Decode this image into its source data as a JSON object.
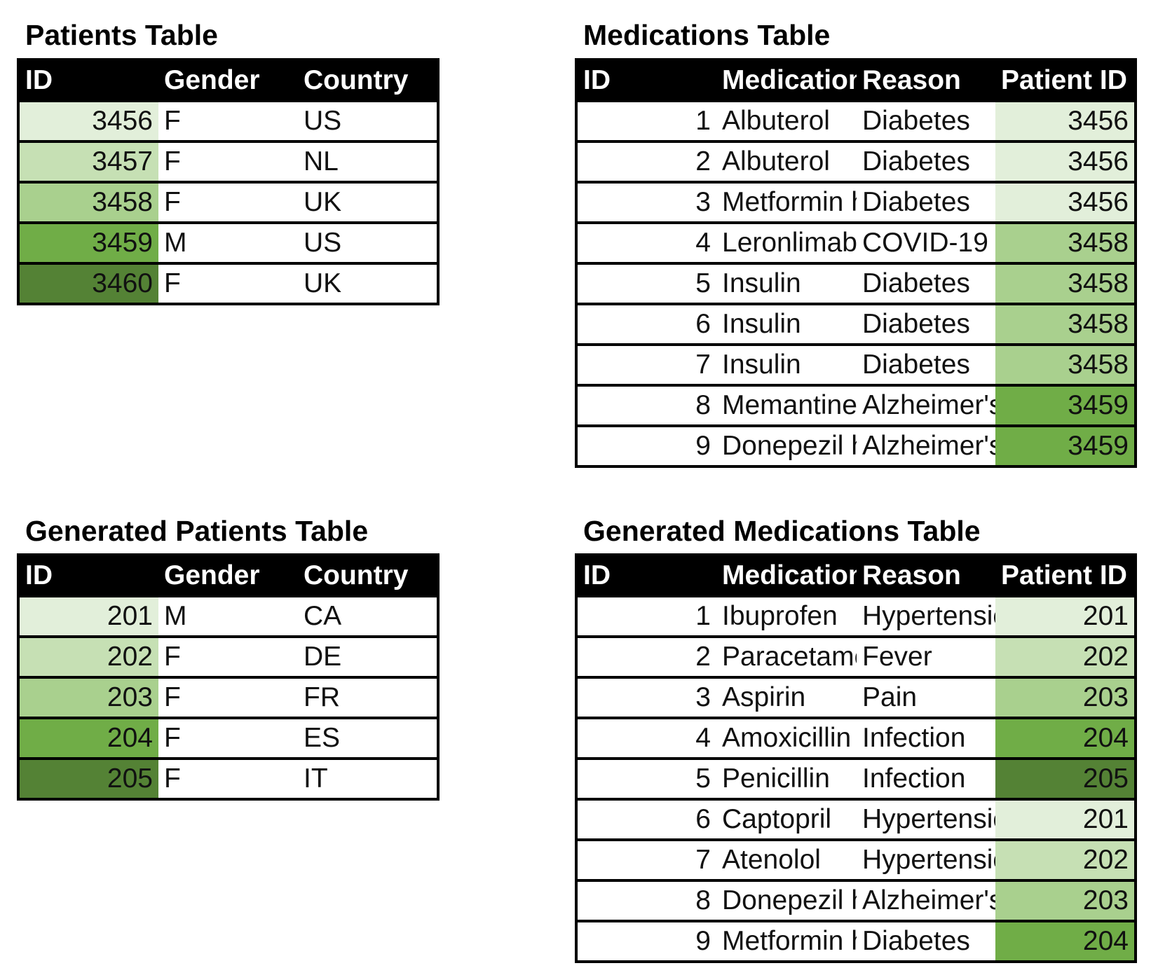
{
  "palette": {
    "shade_level_1": "#E2EFDA",
    "shade_level_2": "#C6E0B4",
    "shade_level_3": "#A9D08E",
    "shade_level_4": "#70AD47",
    "shade_level_5": "#548235",
    "header_bg": "#000000",
    "header_text": "#FFFFFF",
    "border": "#000000"
  },
  "tables": {
    "patients": {
      "title": "Patients Table",
      "headers": [
        "ID",
        "Gender",
        "Country"
      ],
      "col_aligns": [
        "right",
        "left",
        "left"
      ],
      "shade_col": 0,
      "rows": [
        {
          "cells": [
            "3456",
            "F",
            "US"
          ],
          "shade": "#E2EFDA"
        },
        {
          "cells": [
            "3457",
            "F",
            "NL"
          ],
          "shade": "#C6E0B4"
        },
        {
          "cells": [
            "3458",
            "F",
            "UK"
          ],
          "shade": "#A9D08E"
        },
        {
          "cells": [
            "3459",
            "M",
            "US"
          ],
          "shade": "#70AD47"
        },
        {
          "cells": [
            "3460",
            "F",
            "UK"
          ],
          "shade": "#548235"
        }
      ]
    },
    "medications": {
      "title": "Medications Table",
      "headers": [
        "ID",
        "Medication",
        "Reason",
        "Patient ID"
      ],
      "col_aligns": [
        "right",
        "left",
        "left",
        "right"
      ],
      "shade_col": 3,
      "rows": [
        {
          "cells": [
            "1",
            "Albuterol",
            "Diabetes",
            "3456"
          ],
          "shade": "#E2EFDA"
        },
        {
          "cells": [
            "2",
            "Albuterol",
            "Diabetes",
            "3456"
          ],
          "shade": "#E2EFDA"
        },
        {
          "cells": [
            "3",
            "Metformin hydrochloride",
            "Diabetes",
            "3456"
          ],
          "shade": "#E2EFDA"
        },
        {
          "cells": [
            "4",
            "Leronlimab",
            "COVID-19",
            "3458"
          ],
          "shade": "#A9D08E"
        },
        {
          "cells": [
            "5",
            "Insulin",
            "Diabetes",
            "3458"
          ],
          "shade": "#A9D08E"
        },
        {
          "cells": [
            "6",
            "Insulin",
            "Diabetes",
            "3458"
          ],
          "shade": "#A9D08E"
        },
        {
          "cells": [
            "7",
            "Insulin",
            "Diabetes",
            "3458"
          ],
          "shade": "#A9D08E"
        },
        {
          "cells": [
            "8",
            "Memantine",
            "Alzheimer's",
            "3459"
          ],
          "shade": "#70AD47"
        },
        {
          "cells": [
            "9",
            "Donepezil hydrochloride",
            "Alzheimer's",
            "3459"
          ],
          "shade": "#70AD47"
        }
      ]
    },
    "generated_patients": {
      "title": "Generated Patients Table",
      "headers": [
        "ID",
        "Gender",
        "Country"
      ],
      "col_aligns": [
        "right",
        "left",
        "left"
      ],
      "shade_col": 0,
      "rows": [
        {
          "cells": [
            "201",
            "M",
            "CA"
          ],
          "shade": "#E2EFDA"
        },
        {
          "cells": [
            "202",
            "F",
            "DE"
          ],
          "shade": "#C6E0B4"
        },
        {
          "cells": [
            "203",
            "F",
            "FR"
          ],
          "shade": "#A9D08E"
        },
        {
          "cells": [
            "204",
            "F",
            "ES"
          ],
          "shade": "#70AD47"
        },
        {
          "cells": [
            "205",
            "F",
            "IT"
          ],
          "shade": "#548235"
        }
      ]
    },
    "generated_medications": {
      "title": "Generated Medications Table",
      "headers": [
        "ID",
        "Medication",
        "Reason",
        "Patient ID"
      ],
      "col_aligns": [
        "right",
        "left",
        "left",
        "right"
      ],
      "shade_col": 3,
      "rows": [
        {
          "cells": [
            "1",
            "Ibuprofen",
            "Hypertension",
            "201"
          ],
          "shade": "#E2EFDA"
        },
        {
          "cells": [
            "2",
            "Paracetamol",
            "Fever",
            "202"
          ],
          "shade": "#C6E0B4"
        },
        {
          "cells": [
            "3",
            "Aspirin",
            "Pain",
            "203"
          ],
          "shade": "#A9D08E"
        },
        {
          "cells": [
            "4",
            "Amoxicillin",
            "Infection",
            "204"
          ],
          "shade": "#70AD47"
        },
        {
          "cells": [
            "5",
            "Penicillin",
            "Infection",
            "205"
          ],
          "shade": "#548235"
        },
        {
          "cells": [
            "6",
            "Captopril",
            "Hypertension",
            "201"
          ],
          "shade": "#E2EFDA"
        },
        {
          "cells": [
            "7",
            "Atenolol",
            "Hypertension",
            "202"
          ],
          "shade": "#C6E0B4"
        },
        {
          "cells": [
            "8",
            "Donepezil hydrochloride",
            "Alzheimer's",
            "203"
          ],
          "shade": "#A9D08E"
        },
        {
          "cells": [
            "9",
            "Metformin hydrochloride",
            "Diabetes",
            "204"
          ],
          "shade": "#70AD47"
        }
      ]
    }
  }
}
